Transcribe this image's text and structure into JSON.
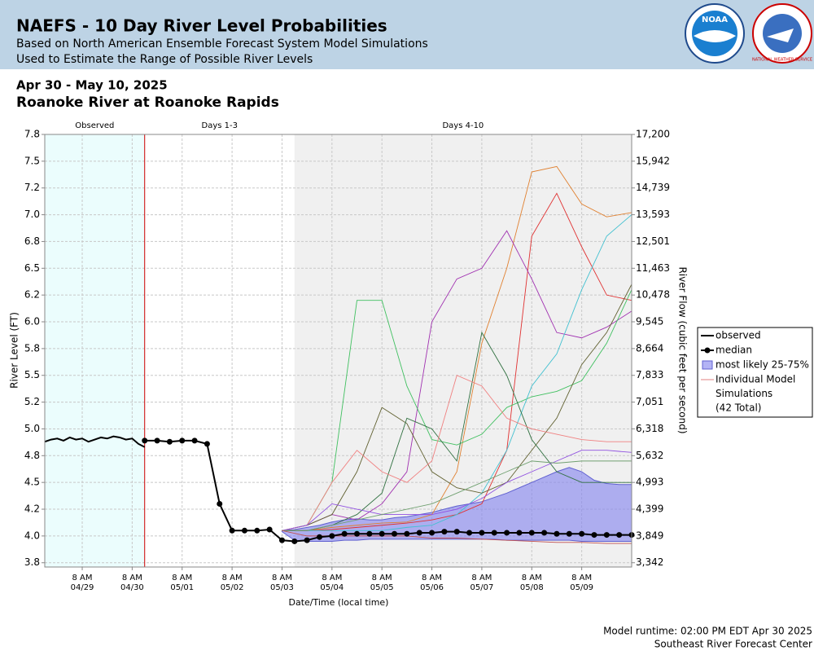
{
  "header": {
    "title": "NAEFS - 10 Day River Level Probabilities",
    "subtitle": [
      "Based on North American Ensemble Forecast System Model Simulations",
      "Used to Estimate the Range of Possible River Levels"
    ],
    "logos": [
      "NOAA",
      "NATIONAL WEATHER SERVICE"
    ]
  },
  "footer": [
    "Model runtime: 02:00 PM EDT Apr 30 2025",
    "Southeast River Forecast Center"
  ],
  "chart_data": {
    "type": "line",
    "date_range": "Apr 30 - May 10, 2025",
    "title": "Roanoke River at Roanoke Rapids",
    "ylabel": "River Level (FT)",
    "y2label": "River Flow (cubic feet per second)",
    "xlabel": "Date/Time (local time)",
    "xlim": [
      "2025-04-28T14:00",
      "2025-05-10T08:00"
    ],
    "ylim": [
      3.71,
      7.75
    ],
    "grid": true,
    "legend": "right",
    "forecast_start": {
      "x": "2025-04-30T14:00",
      "color": "#cc0000"
    },
    "regions": [
      {
        "label": "Observed",
        "start": "2025-04-28T14:00",
        "end": "2025-04-30T14:00",
        "color": "#ebfdfd"
      },
      {
        "label": "Days 1-3",
        "start": "2025-04-30T14:00",
        "end": "2025-05-03T14:00",
        "color": "#ffffff"
      },
      {
        "label": "Days 4-10",
        "start": "2025-05-03T14:00",
        "end": "2025-05-10T08:00",
        "color": "#f0f0f0"
      }
    ],
    "xticks": [
      {
        "value": "2025-04-29T08:00",
        "label": [
          "8 AM",
          "04/29"
        ]
      },
      {
        "value": "2025-04-30T08:00",
        "label": [
          "8 AM",
          "04/30"
        ]
      },
      {
        "value": "2025-05-01T08:00",
        "label": [
          "8 AM",
          "05/01"
        ]
      },
      {
        "value": "2025-05-02T08:00",
        "label": [
          "8 AM",
          "05/02"
        ]
      },
      {
        "value": "2025-05-03T08:00",
        "label": [
          "8 AM",
          "05/03"
        ]
      },
      {
        "value": "2025-05-04T08:00",
        "label": [
          "8 AM",
          "05/04"
        ]
      },
      {
        "value": "2025-05-05T08:00",
        "label": [
          "8 AM",
          "05/05"
        ]
      },
      {
        "value": "2025-05-06T08:00",
        "label": [
          "8 AM",
          "05/06"
        ]
      },
      {
        "value": "2025-05-07T08:00",
        "label": [
          "8 AM",
          "05/07"
        ]
      },
      {
        "value": "2025-05-08T08:00",
        "label": [
          "8 AM",
          "05/08"
        ]
      },
      {
        "value": "2025-05-09T08:00",
        "label": [
          "8 AM",
          "05/09"
        ]
      }
    ],
    "yticks": [
      {
        "value": 7.75,
        "label": "7.8"
      },
      7.5,
      {
        "value": 7.25,
        "label": "7.2"
      },
      {
        "value": 7.0,
        "label": "7.0"
      },
      {
        "value": 6.75,
        "label": "6.8"
      },
      6.5,
      {
        "value": 6.25,
        "label": "6.2"
      },
      {
        "value": 6.0,
        "label": "6.0"
      },
      {
        "value": 5.75,
        "label": "5.8"
      },
      5.5,
      {
        "value": 5.25,
        "label": "5.2"
      },
      {
        "value": 5.0,
        "label": "5.0"
      },
      {
        "value": 4.75,
        "label": "4.8"
      },
      4.5,
      {
        "value": 4.25,
        "label": "4.2"
      },
      {
        "value": 4.0,
        "label": "4.0"
      },
      {
        "value": 3.75,
        "label": "3.8"
      }
    ],
    "y2ticks": [
      {
        "value": 17200,
        "label": "17,200"
      },
      {
        "value": 15942,
        "label": "15,942"
      },
      {
        "value": 14739,
        "label": "14,739"
      },
      {
        "value": 13593,
        "label": "13,593"
      },
      {
        "value": 12501,
        "label": "12,501"
      },
      {
        "value": 11463,
        "label": "11,463"
      },
      {
        "value": 10478,
        "label": "10,478"
      },
      {
        "value": 9545,
        "label": "9,545"
      },
      {
        "value": 8664,
        "label": "8,664"
      },
      {
        "value": 7833,
        "label": "7,833"
      },
      {
        "value": 7051,
        "label": "7,051"
      },
      {
        "value": 6318,
        "label": "6,318"
      },
      {
        "value": 5632,
        "label": "5,632"
      },
      {
        "value": 4993,
        "label": "4,993"
      },
      {
        "value": 4399,
        "label": "4,399"
      },
      {
        "value": 3849,
        "label": "3,849"
      },
      {
        "value": 3342,
        "label": "3,342"
      }
    ],
    "series": [
      {
        "name": "observed",
        "color": "#000000",
        "x": [
          "2025-04-28T14:00",
          "2025-04-28T17:00",
          "2025-04-28T20:00",
          "2025-04-28T23:00",
          "2025-04-29T02:00",
          "2025-04-29T05:00",
          "2025-04-29T08:00",
          "2025-04-29T11:00",
          "2025-04-29T14:00",
          "2025-04-29T17:00",
          "2025-04-29T20:00",
          "2025-04-29T23:00",
          "2025-04-30T02:00",
          "2025-04-30T05:00",
          "2025-04-30T08:00",
          "2025-04-30T11:00",
          "2025-04-30T14:00"
        ],
        "values": [
          4.88,
          4.9,
          4.91,
          4.89,
          4.92,
          4.9,
          4.91,
          4.88,
          4.9,
          4.92,
          4.91,
          4.93,
          4.92,
          4.9,
          4.91,
          4.86,
          4.83
        ]
      },
      {
        "name": "median",
        "color": "#000000",
        "x": [
          "2025-04-30T14:00",
          "2025-04-30T20:00",
          "2025-05-01T02:00",
          "2025-05-01T08:00",
          "2025-05-01T14:00",
          "2025-05-01T20:00",
          "2025-05-02T02:00",
          "2025-05-02T08:00",
          "2025-05-02T14:00",
          "2025-05-02T20:00",
          "2025-05-03T02:00",
          "2025-05-03T08:00",
          "2025-05-03T14:00",
          "2025-05-03T20:00",
          "2025-05-04T02:00",
          "2025-05-04T08:00",
          "2025-05-04T14:00",
          "2025-05-04T20:00",
          "2025-05-05T02:00",
          "2025-05-05T08:00",
          "2025-05-05T14:00",
          "2025-05-05T20:00",
          "2025-05-06T02:00",
          "2025-05-06T08:00",
          "2025-05-06T14:00",
          "2025-05-06T20:00",
          "2025-05-07T02:00",
          "2025-05-07T08:00",
          "2025-05-07T14:00",
          "2025-05-07T20:00",
          "2025-05-08T02:00",
          "2025-05-08T08:00",
          "2025-05-08T14:00",
          "2025-05-08T20:00",
          "2025-05-09T02:00",
          "2025-05-09T08:00",
          "2025-05-09T14:00",
          "2025-05-09T20:00",
          "2025-05-10T02:00",
          "2025-05-10T08:00"
        ],
        "values": [
          4.89,
          4.89,
          4.88,
          4.89,
          4.89,
          4.86,
          4.3,
          4.05,
          4.05,
          4.05,
          4.06,
          3.96,
          3.95,
          3.96,
          3.99,
          4.0,
          4.02,
          4.02,
          4.02,
          4.02,
          4.02,
          4.02,
          4.03,
          4.03,
          4.04,
          4.04,
          4.03,
          4.03,
          4.03,
          4.03,
          4.03,
          4.03,
          4.03,
          4.02,
          4.02,
          4.02,
          4.01,
          4.01,
          4.01,
          4.01
        ]
      },
      {
        "name": "most likely 25-75%",
        "color": "#8080ee",
        "x": [
          "2025-05-03T08:00",
          "2025-05-03T14:00",
          "2025-05-03T20:00",
          "2025-05-04T02:00",
          "2025-05-04T08:00",
          "2025-05-04T14:00",
          "2025-05-04T20:00",
          "2025-05-05T02:00",
          "2025-05-05T08:00",
          "2025-05-05T14:00",
          "2025-05-05T20:00",
          "2025-05-06T02:00",
          "2025-05-06T08:00",
          "2025-05-06T14:00",
          "2025-05-06T20:00",
          "2025-05-07T02:00",
          "2025-05-07T08:00",
          "2025-05-07T14:00",
          "2025-05-07T20:00",
          "2025-05-08T02:00",
          "2025-05-08T08:00",
          "2025-05-08T14:00",
          "2025-05-08T20:00",
          "2025-05-09T02:00",
          "2025-05-09T08:00",
          "2025-05-09T14:00",
          "2025-05-09T20:00",
          "2025-05-10T02:00",
          "2025-05-10T08:00"
        ],
        "upper": [
          4.05,
          4.06,
          4.08,
          4.1,
          4.13,
          4.15,
          4.16,
          4.15,
          4.15,
          4.17,
          4.18,
          4.2,
          4.22,
          4.25,
          4.28,
          4.3,
          4.32,
          4.36,
          4.4,
          4.45,
          4.5,
          4.55,
          4.6,
          4.64,
          4.6,
          4.52,
          4.49,
          4.48,
          4.48
        ],
        "lower": [
          4.04,
          3.96,
          3.95,
          3.95,
          3.95,
          3.96,
          3.96,
          3.97,
          3.97,
          3.97,
          3.97,
          3.97,
          3.97,
          3.97,
          3.97,
          3.97,
          3.97,
          3.97,
          3.96,
          3.96,
          3.96,
          3.96,
          3.96,
          3.96,
          3.95,
          3.95,
          3.95,
          3.95,
          3.95
        ]
      }
    ],
    "simulations": {
      "name": [
        "Individual Model",
        "Simulations",
        "(42 Total)"
      ],
      "color": "#e08080",
      "x": [
        "2025-05-03T08:00",
        "2025-05-03T20:00",
        "2025-05-04T08:00",
        "2025-05-04T20:00",
        "2025-05-05T08:00",
        "2025-05-05T20:00",
        "2025-05-06T08:00",
        "2025-05-06T20:00",
        "2025-05-07T08:00",
        "2025-05-07T20:00",
        "2025-05-08T08:00",
        "2025-05-08T20:00",
        "2025-05-09T08:00",
        "2025-05-09T20:00",
        "2025-05-10T08:00"
      ],
      "members": [
        {
          "color": "#e08030",
          "values": [
            4.05,
            4.05,
            4.08,
            4.1,
            4.12,
            4.13,
            4.2,
            4.6,
            5.8,
            6.5,
            7.4,
            7.45,
            7.1,
            6.98,
            7.02
          ]
        },
        {
          "color": "#e03030",
          "values": [
            4.05,
            4.05,
            4.06,
            4.08,
            4.1,
            4.12,
            4.15,
            4.2,
            4.3,
            4.8,
            6.8,
            7.2,
            6.7,
            6.25,
            6.2
          ]
        },
        {
          "color": "#a030b0",
          "values": [
            4.05,
            4.1,
            4.2,
            4.15,
            4.3,
            4.6,
            6.0,
            6.4,
            6.5,
            6.85,
            6.4,
            5.9,
            5.85,
            5.95,
            6.1
          ]
        },
        {
          "color": "#40c060",
          "values": [
            4.05,
            4.1,
            4.5,
            6.2,
            6.2,
            5.4,
            4.9,
            4.85,
            4.95,
            5.2,
            5.3,
            5.35,
            5.45,
            5.8,
            6.3
          ]
        },
        {
          "color": "#40c0d0",
          "values": [
            4.05,
            4.05,
            4.05,
            4.05,
            4.05,
            4.08,
            4.1,
            4.2,
            4.4,
            4.8,
            5.4,
            5.7,
            6.3,
            6.8,
            7.0
          ]
        },
        {
          "color": "#606030",
          "values": [
            4.05,
            4.1,
            4.2,
            4.6,
            5.2,
            5.05,
            4.6,
            4.45,
            4.4,
            4.5,
            4.8,
            5.1,
            5.6,
            5.9,
            6.35
          ]
        },
        {
          "color": "#307040",
          "values": [
            4.05,
            4.05,
            4.1,
            4.2,
            4.4,
            5.1,
            5.0,
            4.7,
            5.9,
            5.5,
            4.9,
            4.6,
            4.5,
            4.5,
            4.5
          ]
        },
        {
          "color": "#f08080",
          "values": [
            4.05,
            4.1,
            4.5,
            4.8,
            4.6,
            4.5,
            4.7,
            5.5,
            5.4,
            5.1,
            5.0,
            4.95,
            4.9,
            4.88,
            4.88
          ]
        },
        {
          "color": "#9050e0",
          "values": [
            4.05,
            4.1,
            4.3,
            4.25,
            4.2,
            4.2,
            4.2,
            4.25,
            4.35,
            4.5,
            4.6,
            4.7,
            4.8,
            4.8,
            4.78
          ]
        },
        {
          "color": "#70a070",
          "values": [
            4.05,
            4.05,
            4.1,
            4.15,
            4.2,
            4.25,
            4.3,
            4.4,
            4.5,
            4.6,
            4.7,
            4.68,
            4.7,
            4.7,
            4.7
          ]
        },
        {
          "color": "#c05050",
          "values": [
            4.05,
            4.0,
            4.0,
            4.0,
            4.0,
            4.0,
            3.98,
            3.98,
            3.97,
            3.96,
            3.95,
            3.94,
            3.94,
            3.93,
            3.93
          ]
        }
      ]
    }
  }
}
